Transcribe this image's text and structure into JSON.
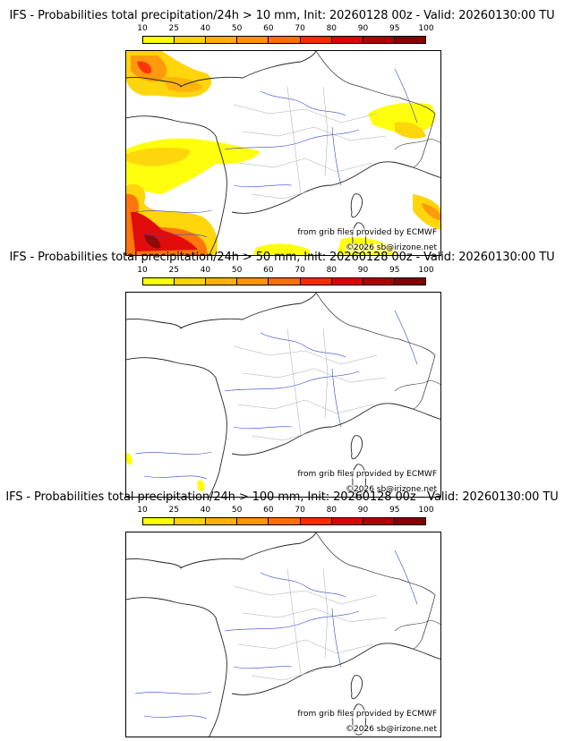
{
  "legend": {
    "ticks": [
      "10",
      "25",
      "40",
      "50",
      "60",
      "70",
      "80",
      "90",
      "95",
      "100"
    ],
    "colors": [
      "#ffff00",
      "#ffd300",
      "#ffb000",
      "#ff9500",
      "#ff7000",
      "#ff2a00",
      "#e00000",
      "#b00000",
      "#860000"
    ]
  },
  "panels": [
    {
      "title": "IFS - Probabilities total precipitation/24h > 10 mm, Init: 20260128 00z - Valid: 20260130:00 TU",
      "threshold_mm": 10,
      "source_credit": "from grib files provided by ECMWF",
      "copyright": "©2026 sb@irizone.net"
    },
    {
      "title": "IFS - Probabilities total precipitation/24h > 50 mm, Init: 20260128 00z - Valid: 20260130:00 TU",
      "threshold_mm": 50,
      "source_credit": "from grib files provided by ECMWF",
      "copyright": "©2026 sb@irizone.net"
    },
    {
      "title": "IFS - Probabilities total precipitation/24h > 100 mm, Init: 20260128 00z - Valid: 20260130:00 TU",
      "threshold_mm": 100,
      "source_credit": "from grib files provided by ECMWF",
      "copyright": "©2026 sb@irizone.net"
    }
  ]
}
